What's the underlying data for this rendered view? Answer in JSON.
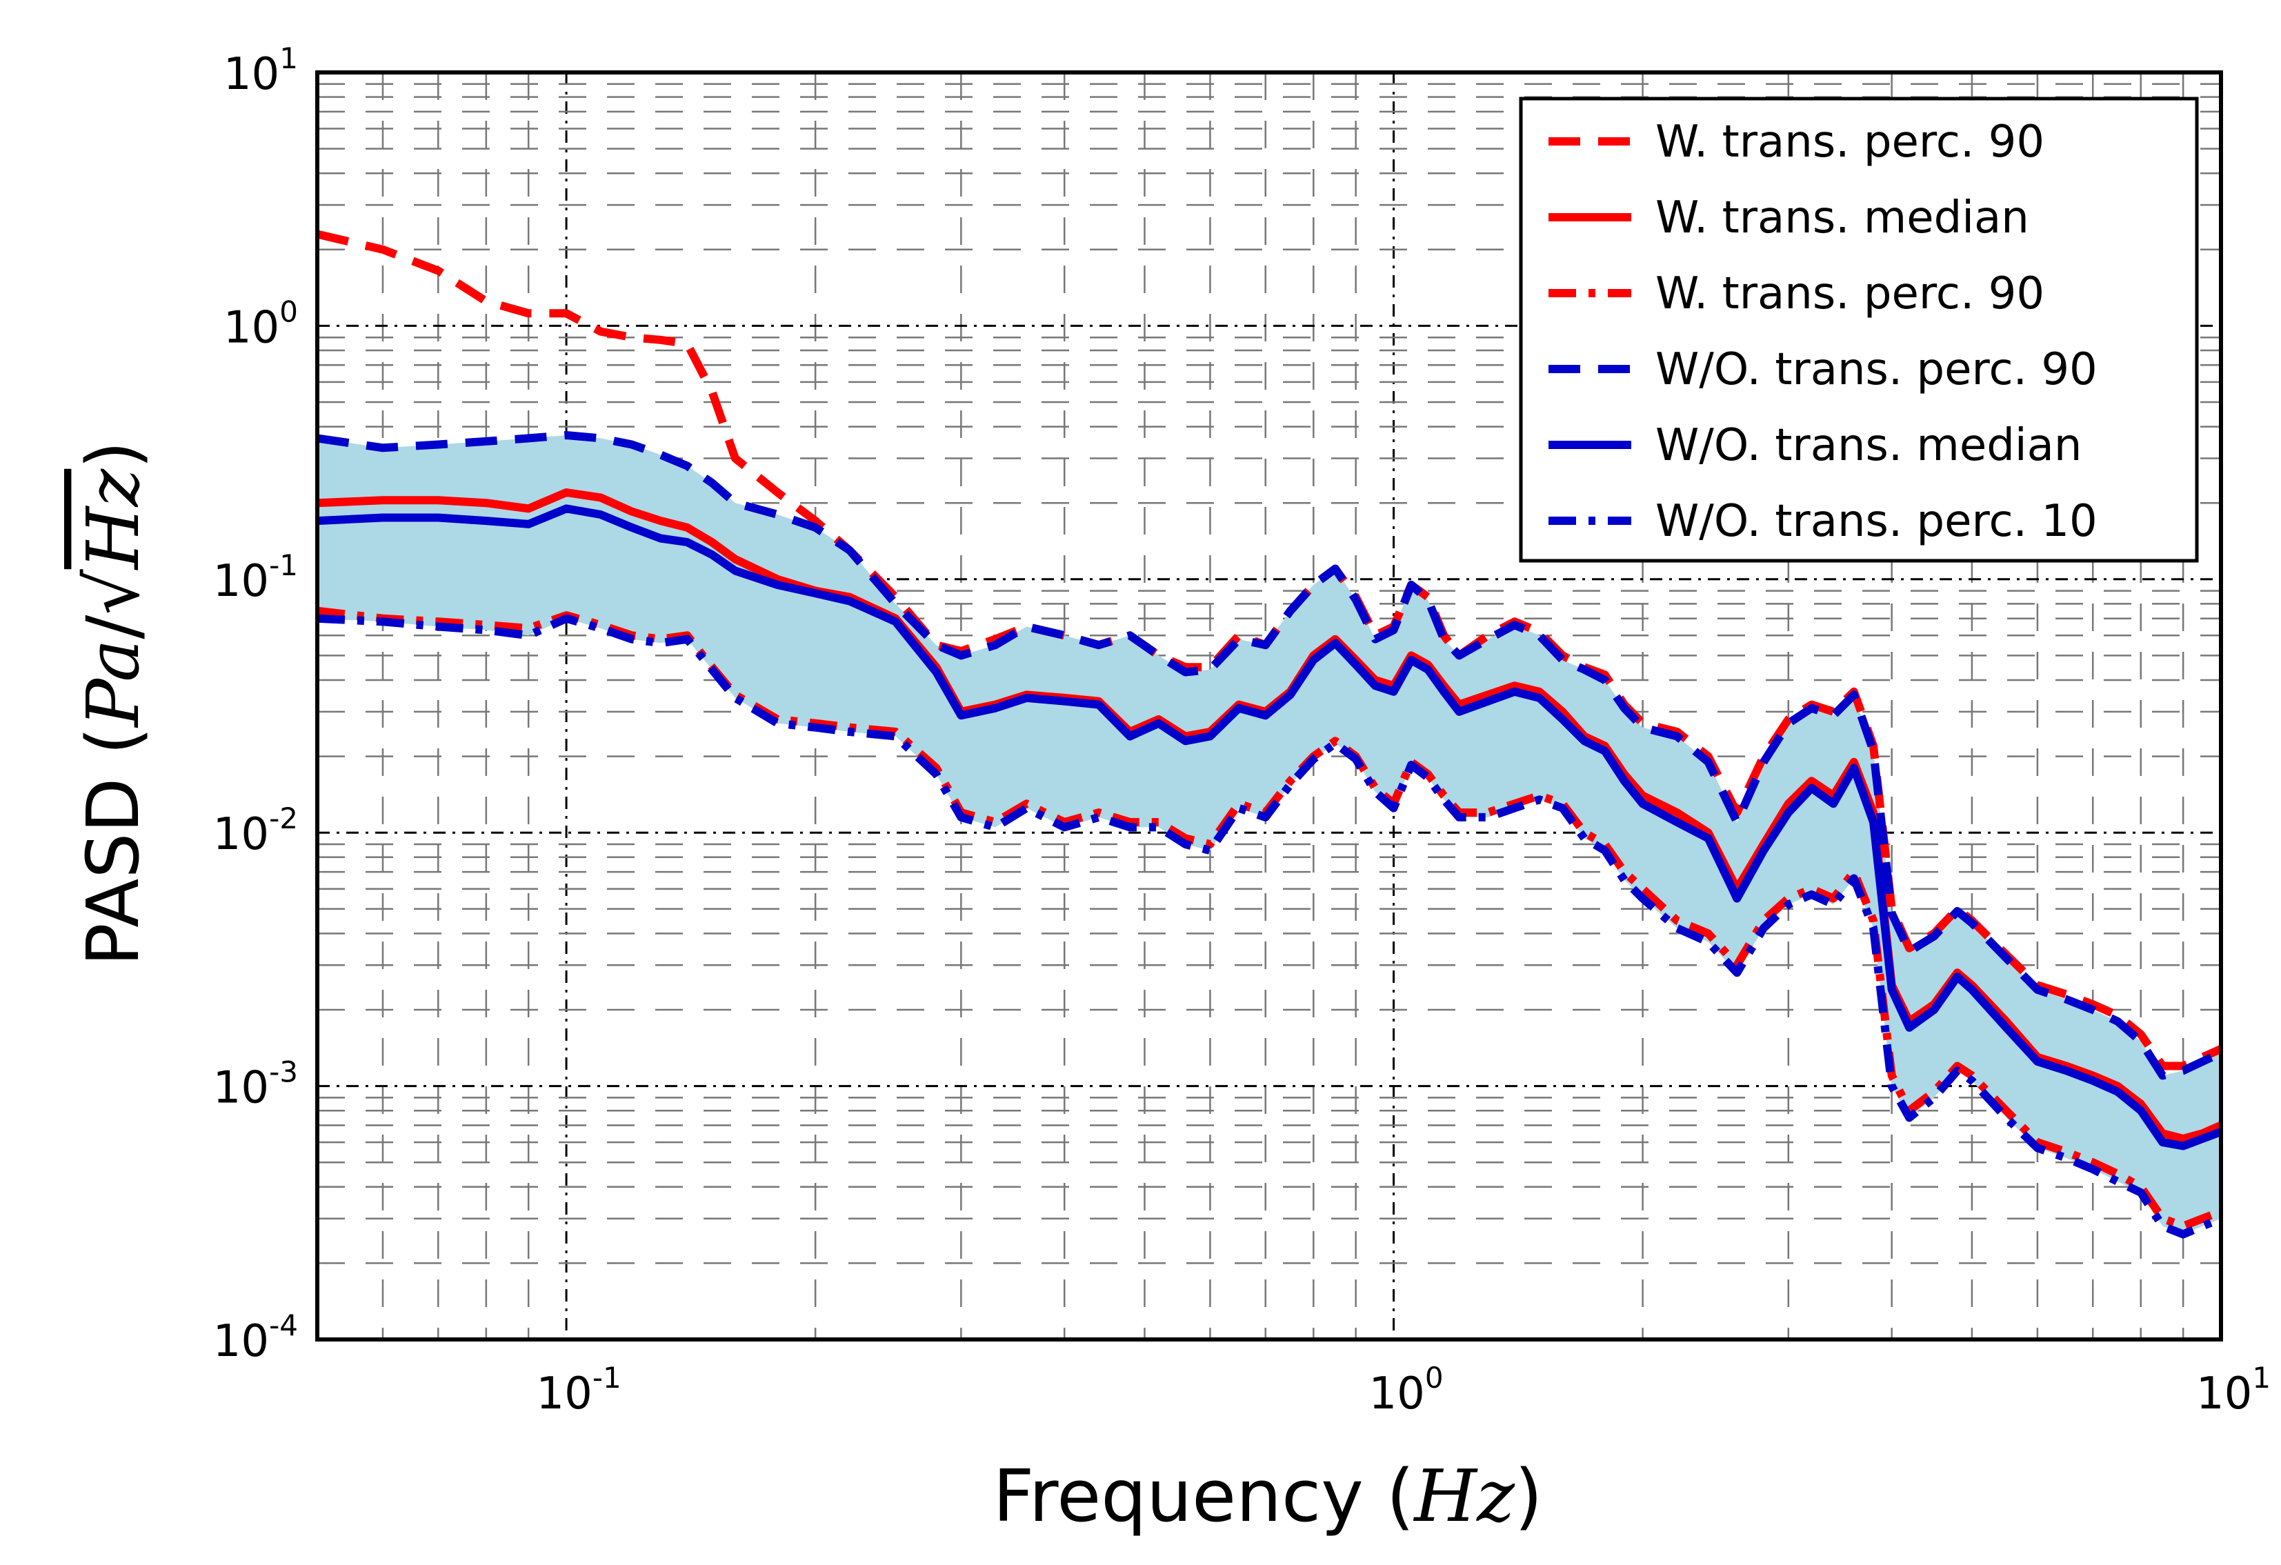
{
  "chart_data": {
    "type": "line",
    "title": "",
    "xlabel": "Frequency",
    "xlabel_unit": "Hz",
    "ylabel": "PASD",
    "ylabel_unit_num": "Pa",
    "ylabel_unit_den": "Hz",
    "xscale": "log",
    "yscale": "log",
    "xlim": [
      0.05,
      10
    ],
    "ylim": [
      0.0001,
      10
    ],
    "grid": true,
    "legend_position": "top-right",
    "x_ticks": [
      {
        "mantissa": "10",
        "exponent": "-1",
        "value": 0.1
      },
      {
        "mantissa": "10",
        "exponent": "0",
        "value": 1
      },
      {
        "mantissa": "10",
        "exponent": "1",
        "value": 10
      }
    ],
    "y_ticks": [
      {
        "mantissa": "10",
        "exponent": "-4",
        "value": 0.0001
      },
      {
        "mantissa": "10",
        "exponent": "-3",
        "value": 0.001
      },
      {
        "mantissa": "10",
        "exponent": "-2",
        "value": 0.01
      },
      {
        "mantissa": "10",
        "exponent": "-1",
        "value": 0.1
      },
      {
        "mantissa": "10",
        "exponent": "0",
        "value": 1
      },
      {
        "mantissa": "10",
        "exponent": "1",
        "value": 10
      }
    ],
    "x": [
      0.05,
      0.06,
      0.07,
      0.08,
      0.09,
      0.1,
      0.11,
      0.12,
      0.13,
      0.14,
      0.15,
      0.16,
      0.18,
      0.2,
      0.22,
      0.25,
      0.28,
      0.3,
      0.33,
      0.36,
      0.4,
      0.44,
      0.48,
      0.52,
      0.56,
      0.6,
      0.65,
      0.7,
      0.75,
      0.8,
      0.85,
      0.9,
      0.95,
      1.0,
      1.05,
      1.1,
      1.15,
      1.2,
      1.3,
      1.4,
      1.5,
      1.6,
      1.7,
      1.8,
      1.9,
      2.0,
      2.2,
      2.4,
      2.6,
      2.8,
      3.0,
      3.2,
      3.4,
      3.6,
      3.8,
      4.0,
      4.2,
      4.5,
      4.8,
      5.0,
      5.5,
      6.0,
      6.5,
      7.0,
      7.5,
      8.0,
      8.5,
      9.0,
      9.5,
      10.0
    ],
    "series": [
      {
        "name": "W. trans. perc. 90",
        "color": "#ff0000",
        "dash": "dashed",
        "values": [
          2.3,
          2.0,
          1.65,
          1.25,
          1.12,
          1.12,
          0.95,
          0.9,
          0.88,
          0.85,
          0.55,
          0.3,
          0.22,
          0.17,
          0.13,
          0.085,
          0.055,
          0.052,
          0.058,
          0.065,
          0.06,
          0.055,
          0.06,
          0.05,
          0.045,
          0.045,
          0.06,
          0.055,
          0.075,
          0.095,
          0.11,
          0.085,
          0.06,
          0.065,
          0.095,
          0.085,
          0.06,
          0.05,
          0.06,
          0.068,
          0.062,
          0.05,
          0.045,
          0.042,
          0.032,
          0.027,
          0.025,
          0.02,
          0.012,
          0.02,
          0.028,
          0.032,
          0.03,
          0.036,
          0.022,
          0.005,
          0.0035,
          0.004,
          0.005,
          0.0045,
          0.0033,
          0.0025,
          0.0023,
          0.0021,
          0.0019,
          0.0016,
          0.0012,
          0.0012,
          0.0013,
          0.0014
        ]
      },
      {
        "name": "W. trans. median",
        "color": "#ff0000",
        "dash": "solid",
        "values": [
          0.2,
          0.205,
          0.205,
          0.2,
          0.19,
          0.22,
          0.21,
          0.185,
          0.17,
          0.16,
          0.14,
          0.12,
          0.1,
          0.09,
          0.085,
          0.07,
          0.045,
          0.03,
          0.032,
          0.035,
          0.034,
          0.033,
          0.025,
          0.028,
          0.024,
          0.025,
          0.032,
          0.03,
          0.036,
          0.05,
          0.058,
          0.048,
          0.04,
          0.038,
          0.05,
          0.046,
          0.038,
          0.032,
          0.035,
          0.038,
          0.036,
          0.03,
          0.024,
          0.022,
          0.017,
          0.014,
          0.012,
          0.01,
          0.006,
          0.009,
          0.013,
          0.016,
          0.014,
          0.019,
          0.012,
          0.0025,
          0.0018,
          0.0021,
          0.0028,
          0.0025,
          0.0018,
          0.0013,
          0.0012,
          0.0011,
          0.001,
          0.00085,
          0.00065,
          0.00062,
          0.00065,
          0.0007
        ]
      },
      {
        "name": "W. trans. perc.  90",
        "color": "#ff0000",
        "dash": "dashdot",
        "values": [
          0.075,
          0.07,
          0.068,
          0.066,
          0.064,
          0.072,
          0.066,
          0.06,
          0.058,
          0.06,
          0.045,
          0.035,
          0.028,
          0.027,
          0.026,
          0.025,
          0.018,
          0.012,
          0.011,
          0.013,
          0.011,
          0.012,
          0.011,
          0.011,
          0.0095,
          0.009,
          0.013,
          0.012,
          0.016,
          0.02,
          0.023,
          0.02,
          0.015,
          0.013,
          0.019,
          0.017,
          0.014,
          0.012,
          0.012,
          0.013,
          0.014,
          0.013,
          0.01,
          0.009,
          0.007,
          0.006,
          0.0045,
          0.004,
          0.003,
          0.0045,
          0.0055,
          0.006,
          0.0055,
          0.007,
          0.0045,
          0.0011,
          0.0008,
          0.00095,
          0.0012,
          0.0011,
          0.0008,
          0.0006,
          0.00055,
          0.0005,
          0.00045,
          0.0004,
          0.0003,
          0.00028,
          0.0003,
          0.00032
        ]
      },
      {
        "name": "W/O. trans. perc. 90",
        "color": "#0000cc",
        "dash": "dashed",
        "values": [
          0.36,
          0.33,
          0.34,
          0.35,
          0.36,
          0.37,
          0.36,
          0.34,
          0.31,
          0.28,
          0.24,
          0.2,
          0.18,
          0.16,
          0.13,
          0.08,
          0.055,
          0.05,
          0.055,
          0.065,
          0.06,
          0.055,
          0.06,
          0.05,
          0.043,
          0.044,
          0.058,
          0.055,
          0.075,
          0.095,
          0.11,
          0.083,
          0.058,
          0.063,
          0.095,
          0.083,
          0.058,
          0.05,
          0.058,
          0.066,
          0.06,
          0.048,
          0.044,
          0.04,
          0.031,
          0.026,
          0.024,
          0.019,
          0.011,
          0.019,
          0.027,
          0.031,
          0.029,
          0.035,
          0.021,
          0.0048,
          0.0034,
          0.0039,
          0.0049,
          0.0044,
          0.0032,
          0.0024,
          0.0022,
          0.002,
          0.0018,
          0.0015,
          0.0011,
          0.00115,
          0.00125,
          0.00135
        ]
      },
      {
        "name": "W/O. trans. median",
        "color": "#0000cc",
        "dash": "solid",
        "values": [
          0.17,
          0.175,
          0.175,
          0.17,
          0.165,
          0.19,
          0.18,
          0.16,
          0.145,
          0.14,
          0.125,
          0.108,
          0.095,
          0.088,
          0.082,
          0.068,
          0.043,
          0.029,
          0.031,
          0.034,
          0.033,
          0.032,
          0.024,
          0.027,
          0.023,
          0.024,
          0.031,
          0.029,
          0.035,
          0.048,
          0.056,
          0.046,
          0.038,
          0.036,
          0.048,
          0.044,
          0.036,
          0.03,
          0.033,
          0.036,
          0.034,
          0.028,
          0.023,
          0.021,
          0.016,
          0.013,
          0.011,
          0.0095,
          0.0055,
          0.0085,
          0.012,
          0.015,
          0.013,
          0.018,
          0.011,
          0.0024,
          0.0017,
          0.002,
          0.0027,
          0.0024,
          0.0017,
          0.00125,
          0.00115,
          0.00105,
          0.00095,
          0.0008,
          0.0006,
          0.00058,
          0.00062,
          0.00066
        ]
      },
      {
        "name": "W/O. trans. perc. 10",
        "color": "#0000cc",
        "dash": "dashdot",
        "values": [
          0.07,
          0.068,
          0.065,
          0.063,
          0.06,
          0.07,
          0.064,
          0.058,
          0.056,
          0.058,
          0.044,
          0.034,
          0.027,
          0.026,
          0.025,
          0.024,
          0.017,
          0.0115,
          0.0105,
          0.0125,
          0.0105,
          0.0115,
          0.0105,
          0.0105,
          0.009,
          0.0085,
          0.0125,
          0.0115,
          0.0155,
          0.0195,
          0.0225,
          0.0195,
          0.0145,
          0.0125,
          0.0185,
          0.0165,
          0.0135,
          0.0115,
          0.0115,
          0.0125,
          0.0135,
          0.0125,
          0.0095,
          0.0085,
          0.0065,
          0.0055,
          0.0042,
          0.0037,
          0.0028,
          0.0042,
          0.0052,
          0.0057,
          0.0052,
          0.0066,
          0.0042,
          0.001,
          0.00075,
          0.0009,
          0.00115,
          0.00105,
          0.00075,
          0.00057,
          0.00052,
          0.00047,
          0.00042,
          0.00038,
          0.00028,
          0.00026,
          0.00028,
          0.0003
        ]
      }
    ],
    "band": {
      "color": "#add8e6",
      "lower_series": 5,
      "upper_series": 3
    }
  }
}
